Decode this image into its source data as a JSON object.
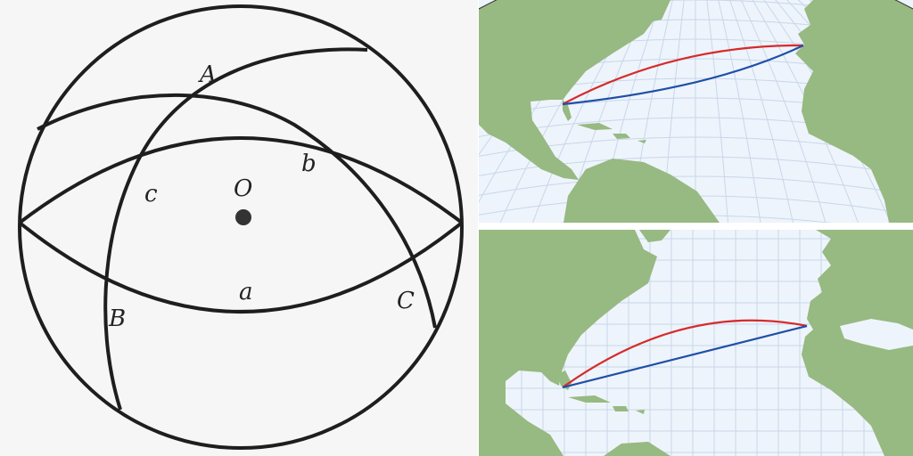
{
  "sphere": {
    "labels": {
      "vertex_a": "A",
      "vertex_b": "B",
      "vertex_c": "C",
      "side_a": "a",
      "side_b": "b",
      "side_c": "c",
      "center": "O"
    },
    "colors": {
      "line": "#1e1e1e",
      "background": "#f6f6f6"
    }
  },
  "maps": {
    "colors": {
      "ocean": "#eef4fb",
      "land": "#97b982",
      "graticule": "#c7d7ea",
      "great_circle_route": "#d62b2b",
      "rhumb_line_route": "#1f4fa8"
    },
    "panels": [
      {
        "projection": "orthographic-globe",
        "routes": [
          "great-circle",
          "rhumb-line"
        ]
      },
      {
        "projection": "mercator",
        "routes": [
          "great-circle",
          "rhumb-line"
        ]
      }
    ]
  }
}
